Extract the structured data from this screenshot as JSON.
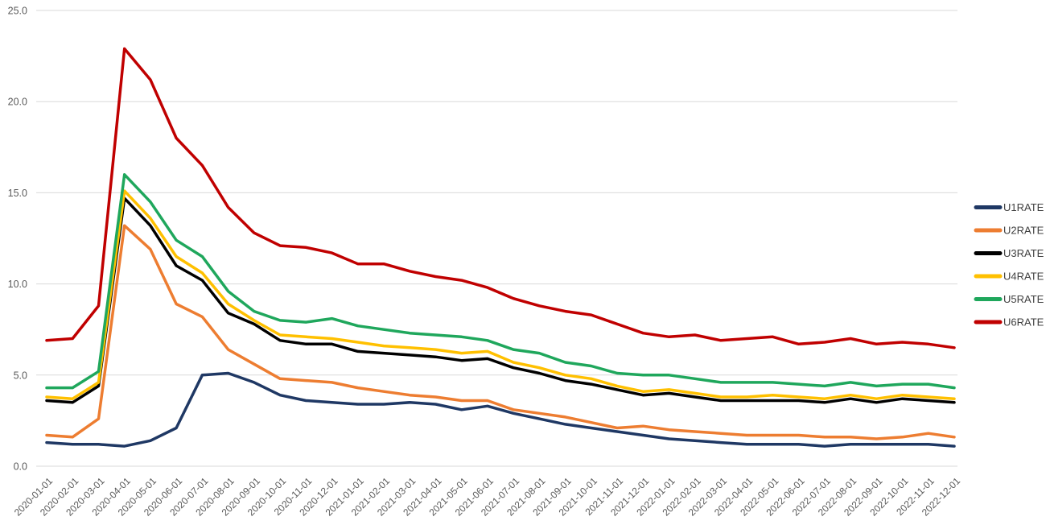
{
  "chart_data": {
    "type": "line",
    "title": "",
    "xlabel": "",
    "ylabel": "",
    "ylim": [
      0,
      25
    ],
    "grid": "horizontal",
    "legend_position": "right",
    "y_ticks": [
      0,
      5,
      10,
      15,
      20,
      25
    ],
    "y_tick_labels": [
      "0.0",
      "5.0",
      "10.0",
      "15.0",
      "20.0",
      "25.0"
    ],
    "x": [
      "2020-01-01",
      "2020-02-01",
      "2020-03-01",
      "2020-04-01",
      "2020-05-01",
      "2020-06-01",
      "2020-07-01",
      "2020-08-01",
      "2020-09-01",
      "2020-10-01",
      "2020-11-01",
      "2020-12-01",
      "2021-01-01",
      "2021-02-01",
      "2021-03-01",
      "2021-04-01",
      "2021-05-01",
      "2021-06-01",
      "2021-07-01",
      "2021-08-01",
      "2021-09-01",
      "2021-10-01",
      "2021-11-01",
      "2021-12-01",
      "2022-01-01",
      "2022-02-01",
      "2022-03-01",
      "2022-04-01",
      "2022-05-01",
      "2022-06-01",
      "2022-07-01",
      "2022-08-01",
      "2022-09-01",
      "2022-10-01",
      "2022-11-01",
      "2022-12-01"
    ],
    "series": [
      {
        "name": "U1RATE",
        "color": "#1F3864",
        "values": [
          1.3,
          1.2,
          1.2,
          1.1,
          1.4,
          2.1,
          5.0,
          5.1,
          4.6,
          3.9,
          3.6,
          3.5,
          3.4,
          3.4,
          3.5,
          3.4,
          3.1,
          3.3,
          2.9,
          2.6,
          2.3,
          2.1,
          1.9,
          1.7,
          1.5,
          1.4,
          1.3,
          1.2,
          1.2,
          1.2,
          1.1,
          1.2,
          1.2,
          1.2,
          1.2,
          1.1
        ]
      },
      {
        "name": "U2RATE",
        "color": "#ED7D31",
        "values": [
          1.7,
          1.6,
          2.6,
          13.2,
          11.9,
          8.9,
          8.2,
          6.4,
          5.6,
          4.8,
          4.7,
          4.6,
          4.3,
          4.1,
          3.9,
          3.8,
          3.6,
          3.6,
          3.1,
          2.9,
          2.7,
          2.4,
          2.1,
          2.2,
          2.0,
          1.9,
          1.8,
          1.7,
          1.7,
          1.7,
          1.6,
          1.6,
          1.5,
          1.6,
          1.8,
          1.6
        ]
      },
      {
        "name": "U3RATE",
        "color": "#000000",
        "values": [
          3.6,
          3.5,
          4.4,
          14.7,
          13.2,
          11.0,
          10.2,
          8.4,
          7.8,
          6.9,
          6.7,
          6.7,
          6.3,
          6.2,
          6.1,
          6.0,
          5.8,
          5.9,
          5.4,
          5.1,
          4.7,
          4.5,
          4.2,
          3.9,
          4.0,
          3.8,
          3.6,
          3.6,
          3.6,
          3.6,
          3.5,
          3.7,
          3.5,
          3.7,
          3.6,
          3.5
        ]
      },
      {
        "name": "U4RATE",
        "color": "#FFC000",
        "values": [
          3.8,
          3.7,
          4.6,
          15.1,
          13.6,
          11.5,
          10.6,
          8.9,
          8.0,
          7.2,
          7.1,
          7.0,
          6.8,
          6.6,
          6.5,
          6.4,
          6.2,
          6.3,
          5.7,
          5.4,
          5.0,
          4.8,
          4.4,
          4.1,
          4.2,
          4.0,
          3.8,
          3.8,
          3.9,
          3.8,
          3.7,
          3.9,
          3.7,
          3.9,
          3.8,
          3.7
        ]
      },
      {
        "name": "U5RATE",
        "color": "#1FA75C",
        "values": [
          4.3,
          4.3,
          5.2,
          16.0,
          14.5,
          12.4,
          11.5,
          9.6,
          8.5,
          8.0,
          7.9,
          8.1,
          7.7,
          7.5,
          7.3,
          7.2,
          7.1,
          6.9,
          6.4,
          6.2,
          5.7,
          5.5,
          5.1,
          5.0,
          5.0,
          4.8,
          4.6,
          4.6,
          4.6,
          4.5,
          4.4,
          4.6,
          4.4,
          4.5,
          4.5,
          4.3
        ]
      },
      {
        "name": "U6RATE",
        "color": "#C00000",
        "values": [
          6.9,
          7.0,
          8.8,
          22.9,
          21.2,
          18.0,
          16.5,
          14.2,
          12.8,
          12.1,
          12.0,
          11.7,
          11.1,
          11.1,
          10.7,
          10.4,
          10.2,
          9.8,
          9.2,
          8.8,
          8.5,
          8.3,
          7.8,
          7.3,
          7.1,
          7.2,
          6.9,
          7.0,
          7.1,
          6.7,
          6.8,
          7.0,
          6.7,
          6.8,
          6.7,
          6.5
        ]
      }
    ]
  },
  "colors": {
    "background": "#FFFFFF",
    "gridline": "#D9D9D9",
    "axis_text": "#595959",
    "legend_text": "#404040"
  }
}
